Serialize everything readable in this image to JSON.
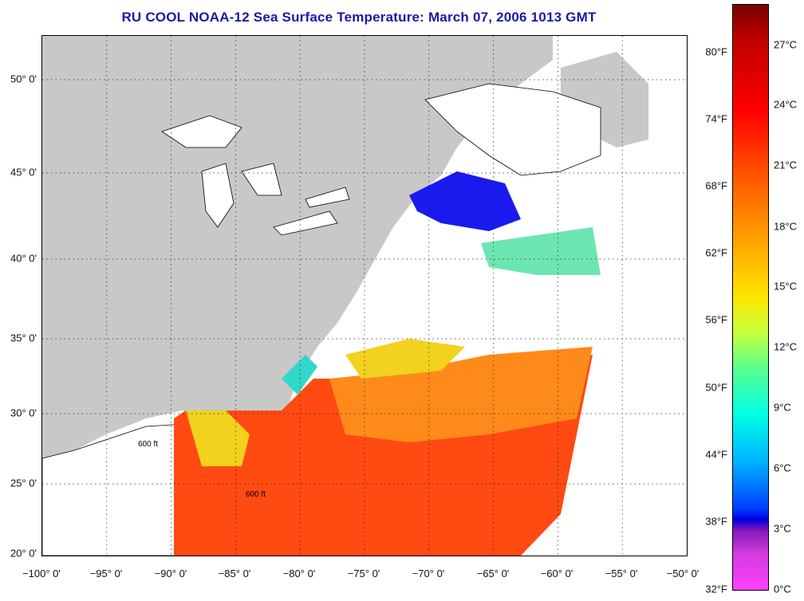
{
  "title": "RU COOL  NOAA-12  Sea Surface Temperature:  March 07, 2006 1013 GMT",
  "map": {
    "lon_range": [
      -100,
      -50
    ],
    "lat_range": [
      20,
      52.5
    ],
    "grid": "dotted",
    "contour_label": "600 ft",
    "land_color": "#c8c8c8",
    "cloud_color": "#ffffff"
  },
  "x_ticks": [
    "−100° 0'",
    "−95° 0'",
    "−90° 0'",
    "−85° 0'",
    "−80° 0'",
    "−75° 0'",
    "−70° 0'",
    "−65° 0'",
    "−60° 0'",
    "−55° 0'",
    "−50° 0'"
  ],
  "y_ticks": [
    "20° 0'",
    "25° 0'",
    "30° 0'",
    "35° 0'",
    "40° 0'",
    "45° 0'",
    "50° 0'"
  ],
  "colorbar": {
    "fahrenheit": [
      "80°F",
      "74°F",
      "68°F",
      "62°F",
      "56°F",
      "50°F",
      "44°F",
      "38°F",
      "32°F"
    ],
    "celsius": [
      "27°C",
      "24°C",
      "21°C",
      "18°C",
      "15°C",
      "12°C",
      "9°C",
      "6°C",
      "3°C",
      "0°C"
    ]
  }
}
